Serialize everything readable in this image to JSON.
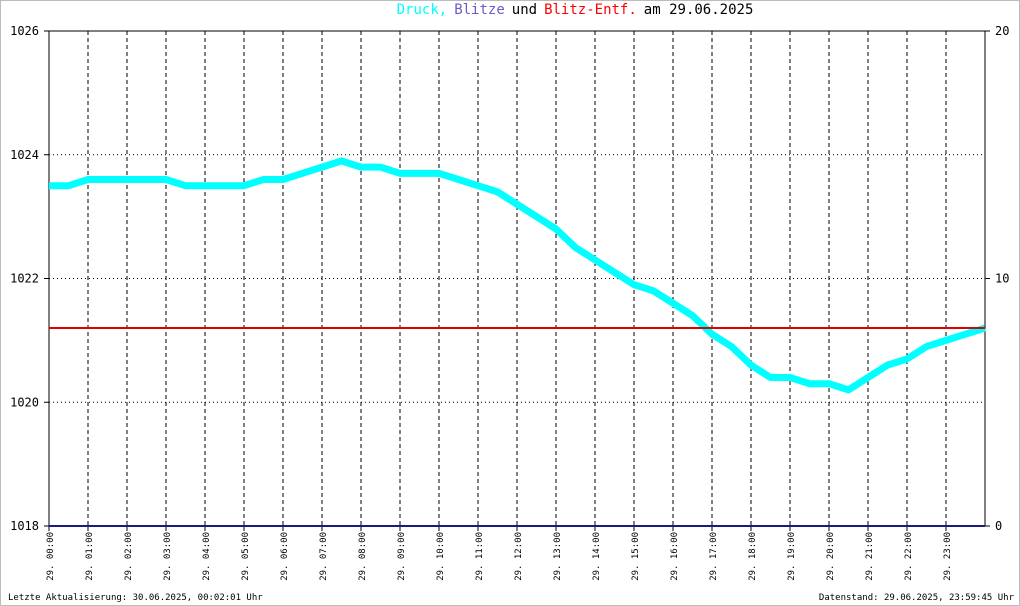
{
  "chart_data": {
    "type": "line",
    "title_parts": [
      {
        "text": "Druck,",
        "color": "#00ffff"
      },
      {
        "text": "Blitze",
        "color": "#6a5acd"
      },
      {
        "text": "und",
        "color": "#000000"
      },
      {
        "text": "Blitz-Entf.",
        "color": "#ff0000"
      },
      {
        "text": "am 29.06.2025",
        "color": "#000000"
      }
    ],
    "x": [
      0,
      0.5,
      1,
      1.5,
      2,
      2.5,
      3,
      3.5,
      4,
      4.5,
      5,
      5.5,
      6,
      6.5,
      7,
      7.5,
      8,
      8.5,
      9,
      9.5,
      10,
      10.5,
      11,
      11.5,
      12,
      12.5,
      13,
      13.5,
      14,
      14.5,
      15,
      15.5,
      16,
      16.5,
      17,
      17.5,
      18,
      18.5,
      19,
      19.5,
      20,
      20.5,
      21,
      21.5,
      22,
      22.5,
      23,
      23.5,
      24
    ],
    "series": [
      {
        "color": "#00ffff",
        "values": [
          1023.5,
          1023.5,
          1023.6,
          1023.6,
          1023.6,
          1023.6,
          1023.6,
          1023.5,
          1023.5,
          1023.5,
          1023.5,
          1023.6,
          1023.6,
          1023.7,
          1023.8,
          1023.9,
          1023.8,
          1023.8,
          1023.7,
          1023.7,
          1023.7,
          1023.6,
          1023.5,
          1023.4,
          1023.2,
          1023.0,
          1022.8,
          1022.5,
          1022.3,
          1022.1,
          1021.9,
          1021.8,
          1021.6,
          1021.4,
          1021.1,
          1020.9,
          1020.6,
          1020.4,
          1020.4,
          1020.3,
          1020.3,
          1020.2,
          1020.4,
          1020.6,
          1020.7,
          1020.9,
          1021.0,
          1021.1,
          1021.2
        ]
      },
      {
        "color": "#1a1a80",
        "axis": "y2",
        "x": [
          0,
          24
        ],
        "values": [
          0,
          0
        ]
      },
      {
        "color": "#e00000",
        "axis": "y2",
        "x": [
          0,
          24
        ],
        "values": [
          8,
          8
        ]
      }
    ],
    "xlim": [
      0,
      24
    ],
    "xticks": [
      {
        "value": 0,
        "label": "29. 00:00"
      },
      {
        "value": 1,
        "label": "29. 01:00"
      },
      {
        "value": 2,
        "label": "29. 02:00"
      },
      {
        "value": 3,
        "label": "29. 03:00"
      },
      {
        "value": 4,
        "label": "29. 04:00"
      },
      {
        "value": 5,
        "label": "29. 05:00"
      },
      {
        "value": 6,
        "label": "29. 06:00"
      },
      {
        "value": 7,
        "label": "29. 07:00"
      },
      {
        "value": 8,
        "label": "29. 08:00"
      },
      {
        "value": 9,
        "label": "29. 09:00"
      },
      {
        "value": 10,
        "label": "29. 10:00"
      },
      {
        "value": 11,
        "label": "29. 11:00"
      },
      {
        "value": 12,
        "label": "29. 12:00"
      },
      {
        "value": 13,
        "label": "29. 13:00"
      },
      {
        "value": 14,
        "label": "29. 14:00"
      },
      {
        "value": 15,
        "label": "29. 15:00"
      },
      {
        "value": 16,
        "label": "29. 16:00"
      },
      {
        "value": 17,
        "label": "29. 17:00"
      },
      {
        "value": 18,
        "label": "29. 18:00"
      },
      {
        "value": 19,
        "label": "29. 19:00"
      },
      {
        "value": 20,
        "label": "29. 20:00"
      },
      {
        "value": 21,
        "label": "29. 21:00"
      },
      {
        "value": 22,
        "label": "29. 22:00"
      },
      {
        "value": 23,
        "label": "29. 23:00"
      }
    ],
    "ylim": [
      1018,
      1026
    ],
    "yticks": [
      1018,
      1020,
      1022,
      1024,
      1026
    ],
    "y2lim": [
      0,
      20
    ],
    "y2ticks": [
      0,
      10,
      20
    ],
    "grid": true,
    "footer_left": "Letzte Aktualisierung: 30.06.2025, 00:02:01 Uhr",
    "footer_right": "Datenstand: 29.06.2025, 23:59:45 Uhr"
  }
}
